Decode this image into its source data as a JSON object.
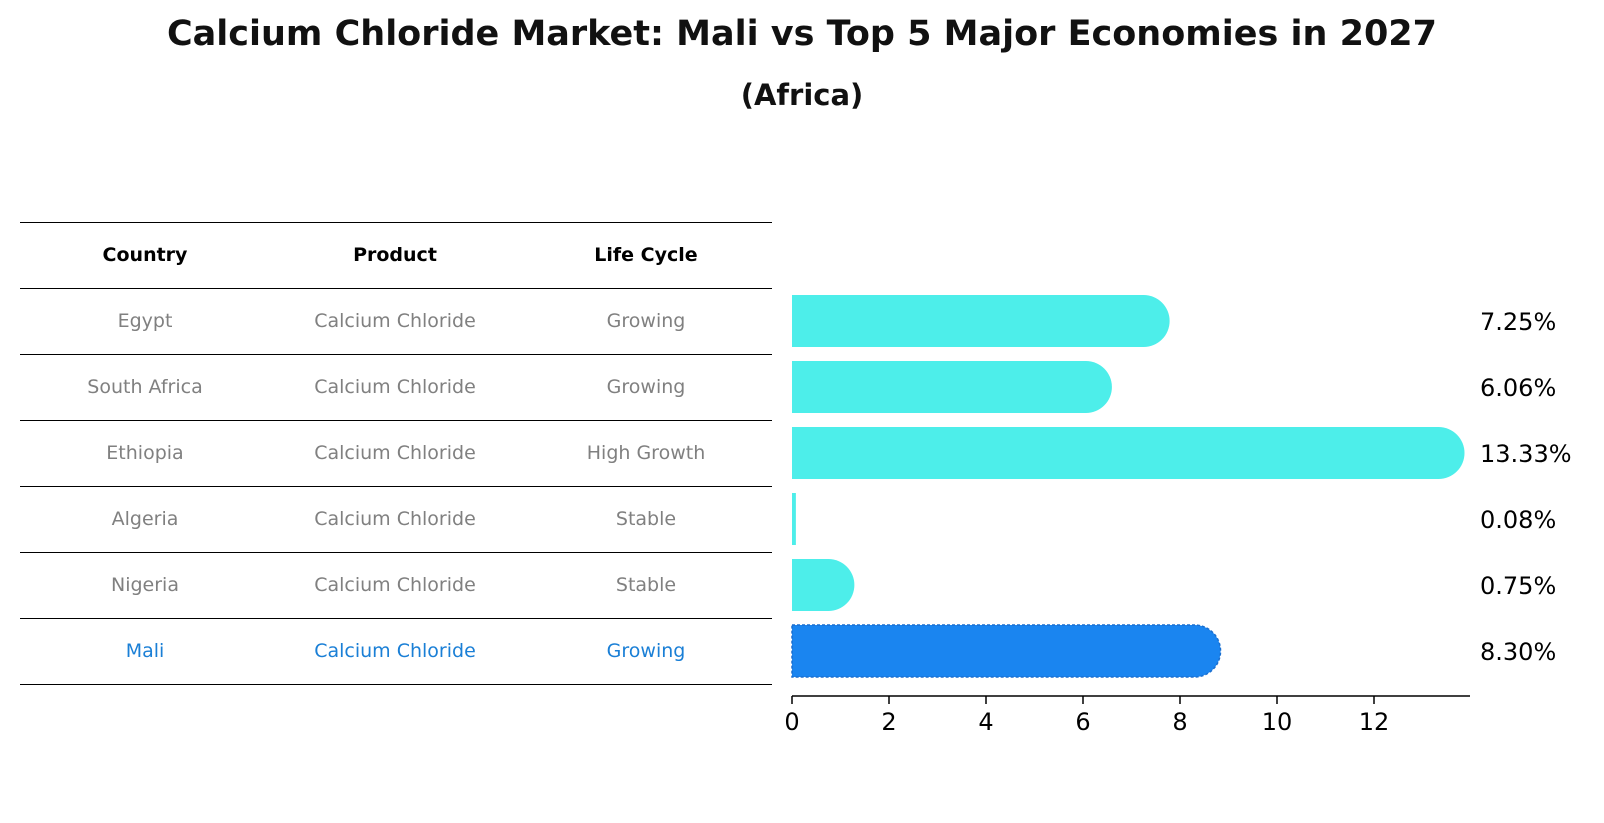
{
  "header": {
    "title": "Calcium Chloride Market: Mali vs Top 5 Major Economies in 2027",
    "subtitle": "(Africa)"
  },
  "table": {
    "columns": [
      "Country",
      "Product",
      "Life Cycle"
    ],
    "rows": [
      {
        "country": "Egypt",
        "product": "Calcium Chloride",
        "life_cycle": "Growing"
      },
      {
        "country": "South Africa",
        "product": "Calcium Chloride",
        "life_cycle": "Growing"
      },
      {
        "country": "Ethiopia",
        "product": "Calcium Chloride",
        "life_cycle": "High Growth"
      },
      {
        "country": "Algeria",
        "product": "Calcium Chloride",
        "life_cycle": "Stable"
      },
      {
        "country": "Nigeria",
        "product": "Calcium Chloride",
        "life_cycle": "Stable"
      },
      {
        "country": "Mali",
        "product": "Calcium Chloride",
        "life_cycle": "Growing"
      }
    ]
  },
  "chart_data": {
    "type": "bar",
    "orientation": "horizontal",
    "categories": [
      "Egypt",
      "South Africa",
      "Ethiopia",
      "Algeria",
      "Nigeria",
      "Mali"
    ],
    "values": [
      7.25,
      6.06,
      13.33,
      0.08,
      0.75,
      8.3
    ],
    "value_labels": [
      "7.25%",
      "6.06%",
      "13.33%",
      "0.08%",
      "0.75%",
      "8.30%"
    ],
    "highlight_category": "Mali",
    "xlim": [
      0,
      14
    ],
    "xticks": [
      0,
      2,
      4,
      6,
      8,
      10,
      12
    ],
    "grid": false,
    "colors": {
      "default": "#4deeea",
      "highlight": "#1a85f0",
      "highlight_text": "#1a7fd6"
    }
  }
}
